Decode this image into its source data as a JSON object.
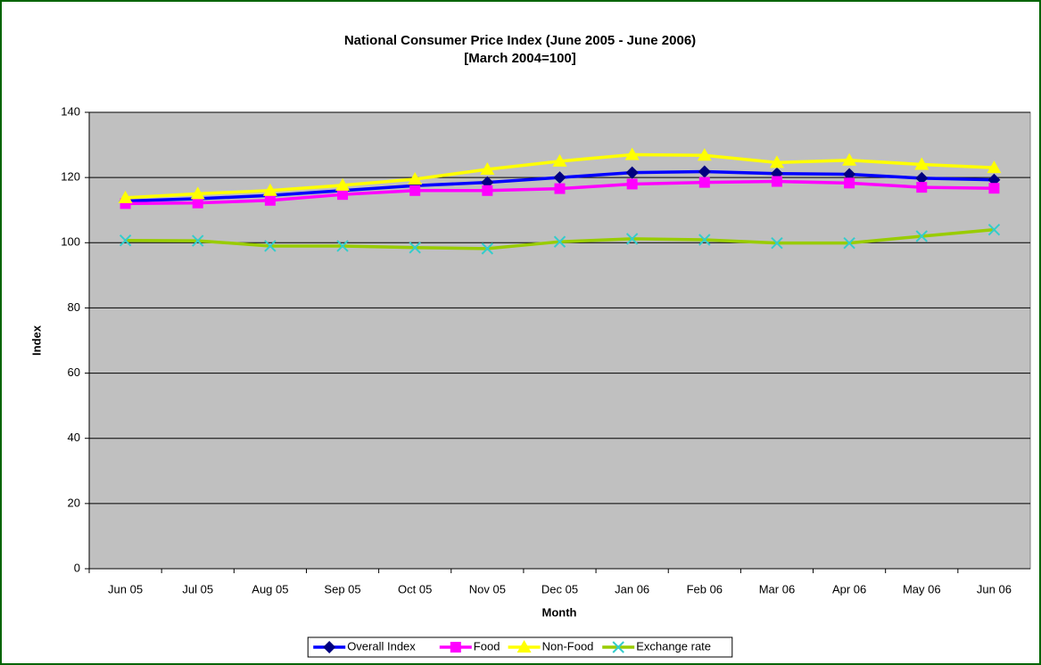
{
  "chart_data": {
    "type": "line",
    "title": "National Consumer Price Index (June 2005 - June 2006)",
    "subtitle": "[March 2004=100]",
    "y_label": "Index",
    "x_label": "Month",
    "categories": [
      "Jun 05",
      "Jul 05",
      "Aug 05",
      "Sep 05",
      "Oct 05",
      "Nov 05",
      "Dec 05",
      "Jan 06",
      "Feb 06",
      "Mar 06",
      "Apr 06",
      "May 06",
      "Jun 06"
    ],
    "series": [
      {
        "name": "Overall Index",
        "color": "#0000ff",
        "marker": "diamond",
        "marker_color": "#000080",
        "values": [
          112.8,
          113.5,
          114.5,
          116,
          117.5,
          118.5,
          120,
          121.5,
          121.8,
          121.2,
          121,
          119.8,
          119.3
        ]
      },
      {
        "name": "Food",
        "color": "#ff00ff",
        "marker": "square",
        "marker_color": "#ff00ff",
        "values": [
          112,
          112.2,
          113,
          114.8,
          116,
          116,
          116.6,
          118,
          118.5,
          118.8,
          118.3,
          117,
          116.7
        ]
      },
      {
        "name": "Non-Food",
        "color": "#ffff00",
        "marker": "triangle",
        "marker_color": "#ffff00",
        "values": [
          113.8,
          115,
          116,
          117.6,
          119.5,
          122.5,
          125,
          127,
          126.8,
          124.6,
          125.3,
          124,
          123
        ]
      },
      {
        "name": "Exchange rate",
        "color": "#99cc00",
        "marker": "x",
        "marker_color": "#33cccc",
        "values": [
          100.7,
          100.6,
          99,
          99,
          98.5,
          98.2,
          100.3,
          101.2,
          100.9,
          99.9,
          99.9,
          102,
          104
        ]
      }
    ],
    "ylim": [
      0,
      140
    ],
    "yticks": [
      0,
      20,
      40,
      60,
      80,
      100,
      120,
      140
    ],
    "grid": true,
    "legend": "bottom"
  }
}
